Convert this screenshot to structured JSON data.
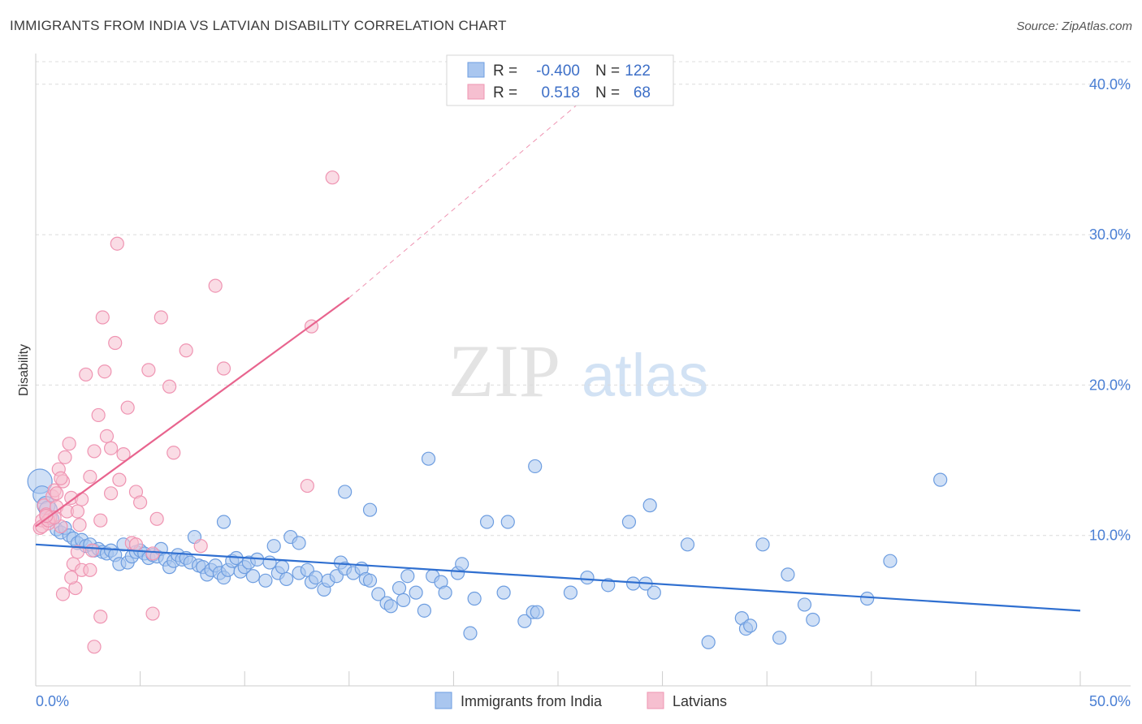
{
  "title": "IMMIGRANTS FROM INDIA VS LATVIAN DISABILITY CORRELATION CHART",
  "source": "Source: ZipAtlas.com",
  "watermark": {
    "zip": "ZIP",
    "atlas": "atlas"
  },
  "colors": {
    "india_fill": "#a9c6ef",
    "india_stroke": "#6d9de0",
    "india_line": "#2f6fd0",
    "latvian_fill": "#f6bfd0",
    "latvian_stroke": "#ef94b2",
    "latvian_line": "#e8648e",
    "tick_label": "#4a7fd4",
    "grid": "#dcdcdc"
  },
  "legend": {
    "rows": [
      {
        "r_label": "R =",
        "r_value": "-0.400",
        "n_label": "N =",
        "n_value": "122",
        "series": "india"
      },
      {
        "r_label": "R =",
        "r_value": "0.518",
        "n_label": "N =",
        "n_value": "68",
        "series": "latvian"
      }
    ]
  },
  "chart_data": {
    "type": "scatter",
    "title": "IMMIGRANTS FROM INDIA VS LATVIAN DISABILITY CORRELATION CHART",
    "xlabel": "",
    "ylabel": "Disability",
    "xlim": [
      0,
      50
    ],
    "ylim": [
      0,
      41.5
    ],
    "x_tick_labels": [
      "0.0%",
      "50.0%"
    ],
    "y_ticks": [
      10,
      20,
      30,
      40
    ],
    "y_tick_labels": [
      "10.0%",
      "20.0%",
      "30.0%",
      "40.0%"
    ],
    "grid": true,
    "legend_position": "top-center",
    "series": [
      {
        "name": "Immigrants from India",
        "color": "#a9c6ef",
        "r": -0.4,
        "n": 122,
        "trend": {
          "x": [
            0,
            50
          ],
          "y": [
            9.4,
            5.0
          ]
        },
        "points": [
          [
            0.2,
            13.6
          ],
          [
            0.3,
            12.7
          ],
          [
            0.5,
            12.0
          ],
          [
            0.6,
            11.7
          ],
          [
            0.8,
            11.1
          ],
          [
            1.0,
            10.4
          ],
          [
            1.2,
            10.2
          ],
          [
            1.4,
            10.5
          ],
          [
            1.6,
            10.0
          ],
          [
            1.8,
            9.8
          ],
          [
            2.0,
            9.5
          ],
          [
            2.2,
            9.7
          ],
          [
            2.4,
            9.3
          ],
          [
            2.6,
            9.4
          ],
          [
            2.8,
            9.0
          ],
          [
            3.0,
            9.1
          ],
          [
            3.2,
            8.9
          ],
          [
            3.4,
            8.8
          ],
          [
            3.6,
            9.0
          ],
          [
            3.8,
            8.7
          ],
          [
            4.0,
            8.1
          ],
          [
            4.2,
            9.4
          ],
          [
            4.4,
            8.2
          ],
          [
            4.6,
            8.6
          ],
          [
            4.8,
            8.9
          ],
          [
            5.0,
            9.0
          ],
          [
            5.2,
            8.8
          ],
          [
            5.4,
            8.5
          ],
          [
            5.6,
            8.7
          ],
          [
            5.8,
            8.6
          ],
          [
            6.0,
            9.1
          ],
          [
            6.2,
            8.4
          ],
          [
            6.4,
            7.9
          ],
          [
            6.6,
            8.3
          ],
          [
            6.8,
            8.7
          ],
          [
            7.0,
            8.4
          ],
          [
            7.2,
            8.5
          ],
          [
            7.4,
            8.2
          ],
          [
            7.6,
            9.9
          ],
          [
            7.8,
            8.0
          ],
          [
            8.0,
            7.9
          ],
          [
            8.2,
            7.4
          ],
          [
            8.4,
            7.7
          ],
          [
            8.6,
            8.0
          ],
          [
            8.8,
            7.5
          ],
          [
            9.0,
            7.2
          ],
          [
            9.2,
            7.7
          ],
          [
            9.4,
            8.3
          ],
          [
            9.6,
            8.5
          ],
          [
            9.8,
            7.6
          ],
          [
            10.0,
            7.9
          ],
          [
            10.2,
            8.2
          ],
          [
            10.4,
            7.3
          ],
          [
            10.6,
            8.4
          ],
          [
            11.0,
            7.0
          ],
          [
            11.2,
            8.2
          ],
          [
            11.4,
            9.3
          ],
          [
            11.6,
            7.5
          ],
          [
            11.8,
            7.9
          ],
          [
            12.0,
            7.1
          ],
          [
            12.2,
            9.9
          ],
          [
            12.6,
            7.5
          ],
          [
            13.0,
            7.7
          ],
          [
            13.2,
            6.9
          ],
          [
            13.4,
            7.2
          ],
          [
            13.8,
            6.4
          ],
          [
            14.0,
            7.0
          ],
          [
            14.4,
            7.3
          ],
          [
            14.6,
            8.2
          ],
          [
            14.8,
            7.8
          ],
          [
            15.2,
            7.5
          ],
          [
            15.6,
            7.8
          ],
          [
            15.8,
            7.1
          ],
          [
            16.0,
            7.0
          ],
          [
            16.4,
            6.1
          ],
          [
            16.8,
            5.5
          ],
          [
            17.0,
            5.3
          ],
          [
            17.4,
            6.5
          ],
          [
            17.6,
            5.7
          ],
          [
            17.8,
            7.3
          ],
          [
            18.2,
            6.2
          ],
          [
            18.6,
            5.0
          ],
          [
            19.0,
            7.3
          ],
          [
            19.4,
            6.9
          ],
          [
            19.6,
            6.2
          ],
          [
            20.2,
            7.5
          ],
          [
            20.8,
            3.5
          ],
          [
            20.4,
            8.1
          ],
          [
            21.0,
            5.8
          ],
          [
            21.6,
            10.9
          ],
          [
            22.4,
            6.2
          ],
          [
            22.6,
            10.9
          ],
          [
            23.4,
            4.3
          ],
          [
            23.8,
            4.9
          ],
          [
            24.0,
            4.9
          ],
          [
            23.9,
            14.6
          ],
          [
            18.8,
            15.1
          ],
          [
            14.8,
            12.9
          ],
          [
            16.0,
            11.7
          ],
          [
            9.0,
            10.9
          ],
          [
            12.6,
            9.5
          ],
          [
            26.4,
            7.2
          ],
          [
            27.4,
            6.7
          ],
          [
            28.4,
            10.9
          ],
          [
            28.6,
            6.8
          ],
          [
            29.2,
            6.8
          ],
          [
            29.6,
            6.2
          ],
          [
            29.4,
            12.0
          ],
          [
            31.2,
            9.4
          ],
          [
            32.2,
            2.9
          ],
          [
            33.8,
            4.5
          ],
          [
            34.0,
            3.8
          ],
          [
            34.2,
            4.0
          ],
          [
            34.8,
            9.4
          ],
          [
            35.6,
            3.2
          ],
          [
            36.0,
            7.4
          ],
          [
            36.8,
            5.4
          ],
          [
            37.2,
            4.4
          ],
          [
            39.8,
            5.8
          ],
          [
            40.9,
            8.3
          ],
          [
            43.3,
            13.7
          ],
          [
            25.6,
            6.2
          ]
        ]
      },
      {
        "name": "Latvians",
        "color": "#f6bfd0",
        "r": 0.518,
        "n": 68,
        "trend": {
          "x": [
            0,
            15
          ],
          "y": [
            10.6,
            25.8
          ]
        },
        "trend_extension": {
          "x": [
            15,
            27.5
          ],
          "y": [
            25.8,
            40.5
          ]
        },
        "points": [
          [
            0.2,
            10.5
          ],
          [
            0.3,
            11.0
          ],
          [
            0.4,
            12.0
          ],
          [
            0.5,
            11.4
          ],
          [
            0.6,
            10.8
          ],
          [
            0.7,
            11.2
          ],
          [
            0.8,
            12.6
          ],
          [
            0.9,
            13.0
          ],
          [
            1.0,
            11.9
          ],
          [
            1.1,
            14.4
          ],
          [
            1.2,
            10.6
          ],
          [
            1.3,
            13.6
          ],
          [
            1.4,
            15.2
          ],
          [
            1.5,
            11.6
          ],
          [
            1.6,
            16.1
          ],
          [
            1.7,
            12.5
          ],
          [
            1.8,
            8.1
          ],
          [
            1.9,
            6.5
          ],
          [
            2.0,
            8.9
          ],
          [
            2.1,
            10.7
          ],
          [
            2.2,
            7.7
          ],
          [
            2.4,
            20.7
          ],
          [
            2.6,
            13.9
          ],
          [
            2.7,
            9.0
          ],
          [
            2.8,
            15.6
          ],
          [
            3.0,
            18.0
          ],
          [
            3.1,
            11.0
          ],
          [
            3.2,
            24.5
          ],
          [
            3.3,
            20.9
          ],
          [
            3.4,
            16.6
          ],
          [
            3.6,
            15.8
          ],
          [
            3.8,
            22.8
          ],
          [
            3.9,
            29.4
          ],
          [
            4.0,
            13.7
          ],
          [
            4.2,
            15.4
          ],
          [
            4.4,
            18.5
          ],
          [
            4.6,
            9.5
          ],
          [
            4.8,
            12.9
          ],
          [
            5.0,
            12.2
          ],
          [
            5.4,
            21.0
          ],
          [
            5.6,
            8.8
          ],
          [
            5.8,
            11.1
          ],
          [
            6.0,
            24.5
          ],
          [
            6.4,
            19.9
          ],
          [
            6.6,
            15.5
          ],
          [
            7.2,
            22.3
          ],
          [
            7.9,
            9.3
          ],
          [
            8.6,
            26.6
          ],
          [
            9.0,
            21.1
          ],
          [
            13.0,
            13.3
          ],
          [
            13.2,
            23.9
          ],
          [
            14.2,
            33.8
          ],
          [
            0.3,
            10.6
          ],
          [
            0.6,
            11.0
          ],
          [
            1.2,
            13.8
          ],
          [
            1.3,
            6.1
          ],
          [
            1.7,
            7.2
          ],
          [
            2.6,
            7.7
          ],
          [
            2.8,
            2.6
          ],
          [
            3.1,
            4.6
          ],
          [
            5.6,
            4.8
          ],
          [
            4.8,
            9.4
          ],
          [
            0.9,
            11.2
          ],
          [
            1.0,
            12.8
          ],
          [
            2.2,
            12.4
          ],
          [
            2.0,
            11.6
          ],
          [
            3.6,
            12.8
          ],
          [
            0.5,
            11.3
          ]
        ]
      }
    ]
  },
  "bottom_legend": {
    "items": [
      {
        "label": "Immigrants from India",
        "series": "india"
      },
      {
        "label": "Latvians",
        "series": "latvian"
      }
    ]
  }
}
